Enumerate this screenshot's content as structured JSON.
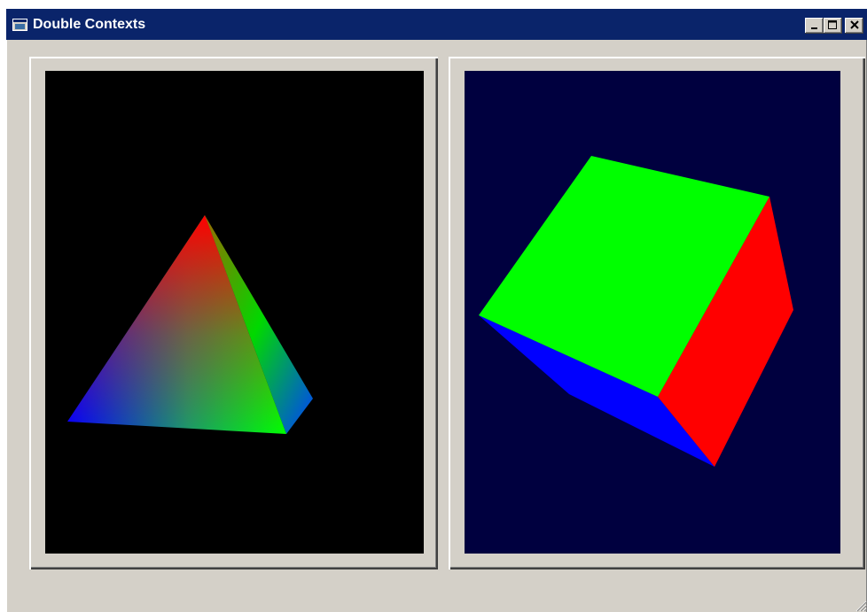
{
  "window": {
    "title": "Double Contexts",
    "controls": {
      "minimize": "minimize",
      "maximize": "maximize",
      "close": "close"
    }
  },
  "contexts": [
    {
      "id": "left",
      "background": "#000000",
      "shape": "tetrahedron",
      "face_colors": [
        "#ff0000",
        "#00ff00",
        "#0000ff"
      ]
    },
    {
      "id": "right",
      "background": "#00003f",
      "shape": "cube",
      "face_colors": [
        "#00ff00",
        "#ff0000",
        "#0000ff"
      ]
    }
  ]
}
